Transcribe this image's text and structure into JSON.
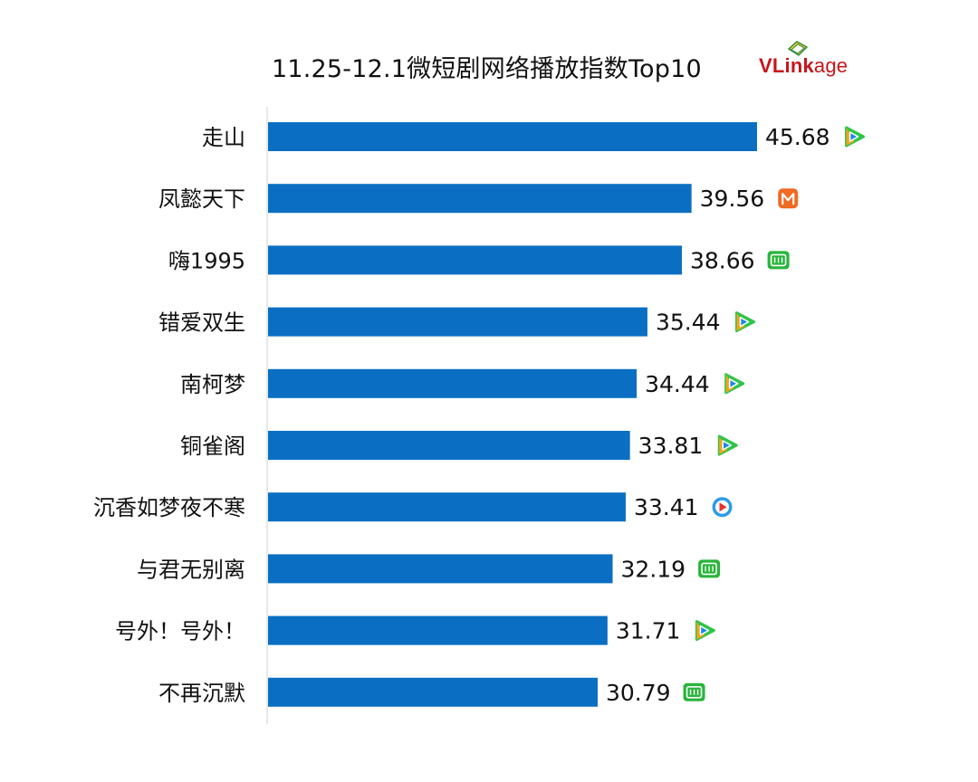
{
  "chart_data": {
    "type": "bar",
    "orientation": "horizontal",
    "title": "11.25-12.1微短剧网络播放指数Top10",
    "categories": [
      "走山",
      "凤懿天下",
      "嗨1995",
      "错爱双生",
      "南柯梦",
      "铜雀阁",
      "沉香如梦夜不寒",
      "与君无别离",
      "号外！号外！",
      "不再沉默"
    ],
    "values": [
      45.68,
      39.56,
      38.66,
      35.44,
      34.44,
      33.81,
      33.41,
      32.19,
      31.71,
      30.79
    ],
    "value_labels": [
      "45.68",
      "39.56",
      "38.66",
      "35.44",
      "34.44",
      "33.81",
      "33.41",
      "32.19",
      "31.71",
      "30.79"
    ],
    "platform_icons": [
      "tencent-video-icon",
      "mango-tv-icon",
      "iqiyi-icon",
      "tencent-video-icon",
      "tencent-video-icon",
      "tencent-video-icon",
      "youku-icon",
      "iqiyi-icon",
      "tencent-video-icon",
      "iqiyi-icon"
    ],
    "bar_color": "#0a6fc2",
    "grid": false,
    "legend": "none"
  },
  "brand": {
    "v": "V",
    "link": "Link",
    "age": "age",
    "accent": "#c8141b"
  },
  "colors": {
    "tencent_green": "#31c44a",
    "tencent_blue": "#1f88e8",
    "tencent_orange": "#f5a31c",
    "mango_orange": "#f06a22",
    "iqiyi_green": "#28b53a",
    "youku_blue": "#2e9be6",
    "youku_red": "#e8312f"
  }
}
